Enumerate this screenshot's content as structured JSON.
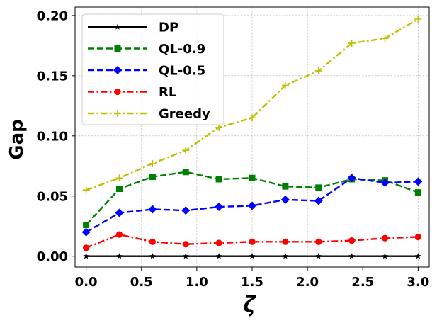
{
  "chart_data": {
    "type": "line",
    "xlabel": "ζ",
    "ylabel": "Gap",
    "xlim": [
      -0.1,
      3.1
    ],
    "ylim": [
      -0.009,
      0.207
    ],
    "xticks": [
      0.0,
      0.5,
      1.0,
      1.5,
      2.0,
      2.5,
      3.0
    ],
    "xtick_labels": [
      "0.0",
      "0.5",
      "1.0",
      "1.5",
      "2.0",
      "2.5",
      "3.0"
    ],
    "yticks": [
      0.0,
      0.05,
      0.1,
      0.15,
      0.2
    ],
    "ytick_labels": [
      "0.00",
      "0.05",
      "0.10",
      "0.15",
      "0.20"
    ],
    "grid": true,
    "legend_position": "top-left",
    "x": [
      0.0,
      0.3,
      0.6,
      0.9,
      1.2,
      1.5,
      1.8,
      2.1,
      2.4,
      2.7,
      3.0
    ],
    "series": [
      {
        "name": "DP",
        "color": "#000000",
        "dash": "solid",
        "marker": "star",
        "values": [
          0.0,
          0.0,
          0.0,
          0.0,
          0.0,
          0.0,
          0.0,
          0.0,
          0.0,
          0.0,
          0.0
        ]
      },
      {
        "name": "QL-0.9",
        "color": "#008000",
        "dash": "dashed",
        "marker": "square",
        "values": [
          0.026,
          0.056,
          0.066,
          0.07,
          0.064,
          0.065,
          0.058,
          0.057,
          0.064,
          0.063,
          0.053
        ]
      },
      {
        "name": "QL-0.5",
        "color": "#0000ff",
        "dash": "dashed",
        "marker": "diamond",
        "values": [
          0.02,
          0.036,
          0.039,
          0.038,
          0.041,
          0.042,
          0.047,
          0.046,
          0.065,
          0.061,
          0.062
        ]
      },
      {
        "name": "RL",
        "color": "#ff0000",
        "dash": "dashdot",
        "marker": "circle",
        "values": [
          0.007,
          0.018,
          0.012,
          0.01,
          0.011,
          0.012,
          0.012,
          0.012,
          0.013,
          0.015,
          0.016
        ]
      },
      {
        "name": "Greedy",
        "color": "#bfbf00",
        "dash": "dashdot",
        "marker": "plus",
        "values": [
          0.055,
          0.065,
          0.077,
          0.088,
          0.107,
          0.115,
          0.142,
          0.154,
          0.177,
          0.181,
          0.197
        ]
      }
    ]
  }
}
